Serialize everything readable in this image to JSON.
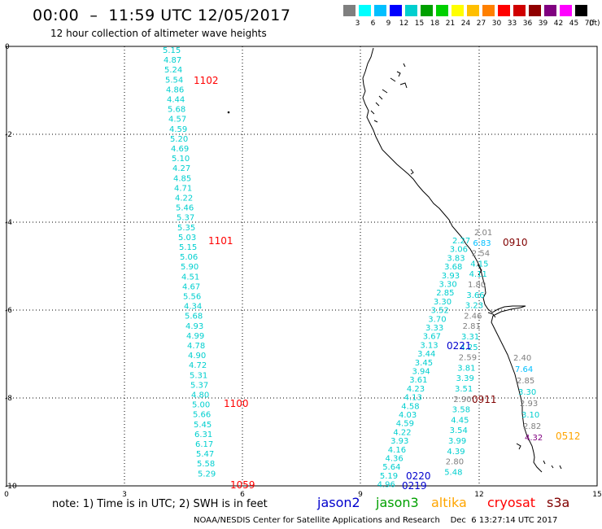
{
  "header": {
    "title": "00:00  –  11:59 UTC 12/05/2017",
    "subtitle": "12 hour collection of altimeter wave heights"
  },
  "color_scale": {
    "labels": [
      "3",
      "6",
      "9",
      "12",
      "15",
      "18",
      "21",
      "24",
      "27",
      "30",
      "33",
      "36",
      "39",
      "42",
      "45",
      "70"
    ],
    "unit": "(ft)",
    "colors": [
      "#7f7f7f",
      "#00ffff",
      "#00bfff",
      "#0000ff",
      "#00cfcf",
      "#00a000",
      "#00d000",
      "#ffff00",
      "#ffbf00",
      "#ff8000",
      "#ff0000",
      "#d00000",
      "#900000",
      "#800080",
      "#ff00ff",
      "#000000"
    ]
  },
  "axes": {
    "x_ticks": [
      "0",
      "3",
      "6",
      "9",
      "12",
      "15"
    ],
    "y_ticks": [
      "0",
      "-2",
      "-4",
      "-6",
      "-8",
      "-10"
    ]
  },
  "track_left": {
    "color": "#00cfcf",
    "values": [
      "5.15",
      "4.87",
      "5.24",
      "5.54",
      "4.86",
      "4.44",
      "5.68",
      "4.57",
      "4.59",
      "5.20",
      "4.69",
      "5.10",
      "4.27",
      "4.85",
      "4.71",
      "4.22",
      "5.46",
      "5.37",
      "5.35",
      "5.03",
      "5.15",
      "5.06",
      "5.90",
      "4.51",
      "4.67",
      "5.56",
      "4.34",
      "5.68",
      "4.93",
      "4.99",
      "4.78",
      "4.90",
      "4.72",
      "5.31",
      "5.37",
      "4.80",
      "5.00",
      "5.66",
      "5.45",
      "6.31",
      "6.17",
      "5.47",
      "5.58",
      "5.29"
    ]
  },
  "track_mid": {
    "color": "#00cfcf",
    "values": [
      "2.27",
      "3.06",
      "3.83",
      "3.68",
      "3.93",
      "3.30",
      "2.85",
      "3.30",
      "3.52",
      "3.70",
      "3.33",
      "3.67",
      "3.13",
      "3.44",
      "3.45",
      "3.94",
      "3.61",
      "4.23",
      "4.13",
      "4.58",
      "4.03",
      "4.59",
      "4.22",
      "3.93",
      "4.16",
      "4.36",
      "5.64",
      "5.19",
      "4.96"
    ]
  },
  "track_right": {
    "values": [
      {
        "v": "2.01",
        "c": "#7f7f7f"
      },
      {
        "v": "6.83",
        "c": "#00bfff"
      },
      {
        "v": "2.54",
        "c": "#7f7f7f"
      },
      {
        "v": "4.15",
        "c": "#00cfcf"
      },
      {
        "v": "4.11",
        "c": "#00cfcf"
      },
      {
        "v": "1.80",
        "c": "#7f7f7f"
      },
      {
        "v": "3.66",
        "c": "#00cfcf"
      },
      {
        "v": "3.23",
        "c": "#00cfcf"
      },
      {
        "v": "2.46",
        "c": "#7f7f7f"
      },
      {
        "v": "2.81",
        "c": "#7f7f7f"
      },
      {
        "v": "3.31",
        "c": "#00cfcf"
      },
      {
        "v": "4.25",
        "c": "#00cfcf"
      },
      {
        "v": "2.59",
        "c": "#7f7f7f"
      },
      {
        "v": "3.81",
        "c": "#00cfcf"
      },
      {
        "v": "3.39",
        "c": "#00cfcf"
      },
      {
        "v": "3.51",
        "c": "#00cfcf"
      },
      {
        "v": "2.90",
        "c": "#7f7f7f"
      },
      {
        "v": "3.58",
        "c": "#00cfcf"
      },
      {
        "v": "4.45",
        "c": "#00cfcf"
      },
      {
        "v": "3.54",
        "c": "#00cfcf"
      },
      {
        "v": "3.99",
        "c": "#00cfcf"
      },
      {
        "v": "4.39",
        "c": "#00cfcf"
      },
      {
        "v": "2.80",
        "c": "#7f7f7f"
      },
      {
        "v": "5.48",
        "c": "#00cfcf"
      }
    ]
  },
  "track_coast": {
    "values": [
      {
        "v": "2.40",
        "c": "#7f7f7f"
      },
      {
        "v": "7.64",
        "c": "#00bfff"
      },
      {
        "v": "2.85",
        "c": "#7f7f7f"
      },
      {
        "v": "3.30",
        "c": "#00cfcf"
      },
      {
        "v": "2.93",
        "c": "#7f7f7f"
      },
      {
        "v": "3.10",
        "c": "#00cfcf"
      },
      {
        "v": "2.82",
        "c": "#7f7f7f"
      },
      {
        "v": "4.32",
        "c": "#800080"
      }
    ]
  },
  "time_labels": [
    {
      "t": "1102",
      "c": "#ff0000"
    },
    {
      "t": "1101",
      "c": "#ff0000"
    },
    {
      "t": "1100",
      "c": "#ff0000"
    },
    {
      "t": "1059",
      "c": "#ff0000"
    },
    {
      "t": "0910",
      "c": "#800000"
    },
    {
      "t": "0911",
      "c": "#800000"
    },
    {
      "t": "0221",
      "c": "#0000cd"
    },
    {
      "t": "0220",
      "c": "#0000cd"
    },
    {
      "t": "0219",
      "c": "#0000cd"
    },
    {
      "t": "0512",
      "c": "#ffa500"
    }
  ],
  "footer": {
    "note": "note:  1) Time is in UTC;  2) SWH is in feet",
    "credit": "NOAA/NESDIS Center for Satellite Applications and Research    Dec  6 13:27:14 UTC 2017",
    "legend": [
      {
        "name": "jason2",
        "color": "#0000cd"
      },
      {
        "name": "jason3",
        "color": "#00a000"
      },
      {
        "name": "altika",
        "color": "#ffa500"
      },
      {
        "name": "cryosat",
        "color": "#ff0000"
      },
      {
        "name": "s3a",
        "color": "#800000"
      }
    ]
  }
}
